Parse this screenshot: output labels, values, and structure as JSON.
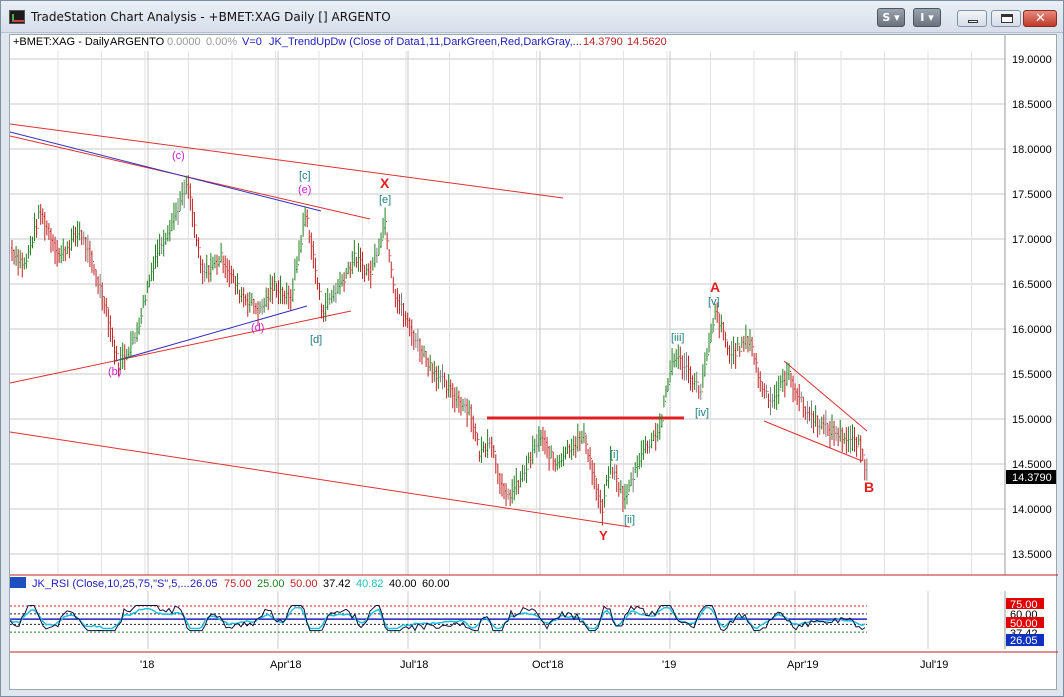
{
  "window": {
    "title": "TradeStation Chart Analysis - +BMET:XAG Daily [] ARGENTO",
    "buttons": {
      "s_label": "S",
      "i_label": "I"
    }
  },
  "header": {
    "symbol_label": "+BMET:XAG - Daily",
    "description": "ARGENTO",
    "change": "0.0000",
    "change_pct": "0.00%",
    "volume": "V=0",
    "indicator": "JK_TrendUpDw (Close of Data1,11,DarkGreen,Red,DarkGray,...",
    "value1": "14.3790",
    "value2": "14.5620"
  },
  "price_axis": {
    "ticks": [
      "19.0000",
      "18.5000",
      "18.0000",
      "17.5000",
      "17.0000",
      "16.5000",
      "16.0000",
      "15.5000",
      "15.0000",
      "14.5000",
      "14.0000",
      "13.5000"
    ],
    "last_price": "14.3790"
  },
  "time_axis": {
    "ticks": [
      "'18",
      "Apr'18",
      "Jul'18",
      "Oct'18",
      "'19",
      "Apr'19",
      "Jul'19"
    ]
  },
  "waves": [
    {
      "label": "(c)",
      "color": "#d020d0"
    },
    {
      "label": "(e)",
      "color": "#d020d0"
    },
    {
      "label": "[c]",
      "color": "#208080"
    },
    {
      "label": "X",
      "color": "#e02020"
    },
    {
      "label": "[e]",
      "color": "#208080"
    },
    {
      "label": "(d)",
      "color": "#d020d0"
    },
    {
      "label": "[d]",
      "color": "#208080"
    },
    {
      "label": "(b)",
      "color": "#d020d0"
    },
    {
      "label": "[i]",
      "color": "#208080"
    },
    {
      "label": "[ii]",
      "color": "#208080"
    },
    {
      "label": "Y",
      "color": "#e02020"
    },
    {
      "label": "[iii]",
      "color": "#208080"
    },
    {
      "label": "[iv]",
      "color": "#208080"
    },
    {
      "label": "A",
      "color": "#e02020"
    },
    {
      "label": "[v]",
      "color": "#208080"
    },
    {
      "label": "B",
      "color": "#e02020"
    }
  ],
  "rsi": {
    "title": "JK_RSI (Close,10,25,75,\"S\",5,...",
    "v1": "26.05",
    "v2": "75.00",
    "v3": "25.00",
    "v4": "50.00",
    "v5": "37.42",
    "v6": "40.82",
    "v7": "40.00",
    "v8": "60.00",
    "axis_labels": [
      "75.00",
      "60.00",
      "50.00",
      "37.42",
      "26.05"
    ]
  },
  "colors": {
    "up_bar": "#208020",
    "down_bar": "#c02020",
    "neutral_bar": "#808080",
    "trendline": "#e03030",
    "accent_blue": "#3030c0"
  }
}
